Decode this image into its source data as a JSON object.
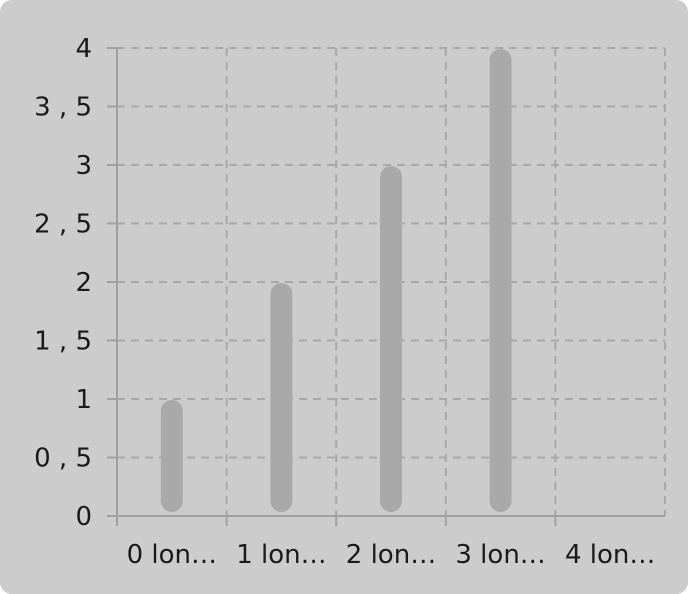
{
  "chart_data": {
    "type": "bar",
    "categories": [
      "0 lon…",
      "1 lon…",
      "2 lon…",
      "3 lon…",
      "4 lon…"
    ],
    "values": [
      1,
      2,
      3,
      4,
      null
    ],
    "ylim": [
      0,
      4
    ],
    "y_ticks": [
      {
        "value": 0,
        "label": "0"
      },
      {
        "value": 0.5,
        "label": "0 , 5"
      },
      {
        "value": 1,
        "label": "1"
      },
      {
        "value": 1.5,
        "label": "1 , 5"
      },
      {
        "value": 2,
        "label": "2"
      },
      {
        "value": 2.5,
        "label": "2 , 5"
      },
      {
        "value": 3,
        "label": "3"
      },
      {
        "value": 3.5,
        "label": "3 , 5"
      },
      {
        "value": 4,
        "label": "4"
      }
    ],
    "grid": true,
    "legend": "none",
    "colors": {
      "background": "#cccccc",
      "bar": "#a9a9a9",
      "grid": "#a8a8a8",
      "axis": "#a0a0a0",
      "text": "#1a1a1a"
    }
  }
}
